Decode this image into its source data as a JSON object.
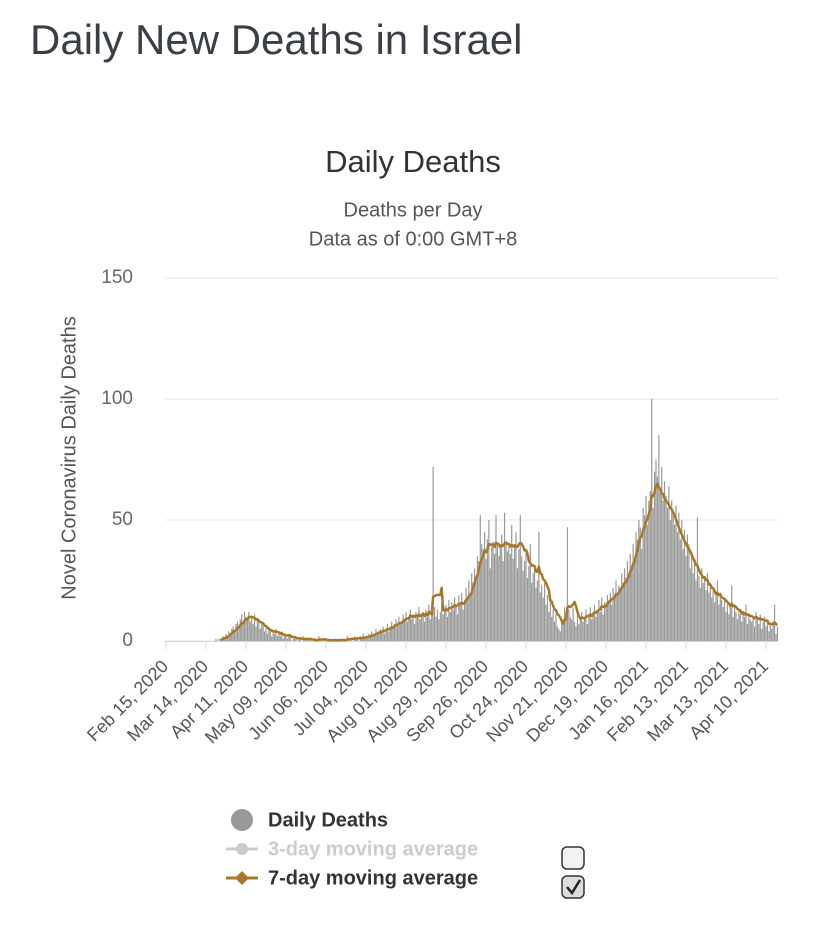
{
  "page_title": "Daily New Deaths in Israel",
  "chart_data": {
    "type": "bar",
    "title": "Daily Deaths",
    "subtitle": [
      "Deaths per Day",
      "Data as of 0:00 GMT+8"
    ],
    "ylabel": "Novel Coronavirus Daily Deaths",
    "ylim": [
      0,
      150
    ],
    "yticks": [
      0,
      50,
      100,
      150
    ],
    "grid": true,
    "categories": [
      "Feb 15, 2020",
      null,
      null,
      null,
      null,
      null,
      null,
      null,
      null,
      null,
      null,
      null,
      null,
      null,
      null,
      null,
      null,
      null,
      null,
      null,
      null,
      null,
      null,
      null,
      null,
      null,
      null,
      null,
      "Mar 14, 2020",
      null,
      null,
      null,
      null,
      null,
      null,
      null,
      null,
      null,
      null,
      null,
      null,
      null,
      null,
      null,
      null,
      null,
      null,
      null,
      null,
      null,
      null,
      null,
      null,
      null,
      null,
      null,
      "Apr 11, 2020",
      null,
      null,
      null,
      null,
      null,
      null,
      null,
      null,
      null,
      null,
      null,
      null,
      null,
      null,
      null,
      null,
      null,
      null,
      null,
      null,
      null,
      null,
      null,
      null,
      null,
      null,
      null,
      "May 09, 2020",
      null,
      null,
      null,
      null,
      null,
      null,
      null,
      null,
      null,
      null,
      null,
      null,
      null,
      null,
      null,
      null,
      null,
      null,
      null,
      null,
      null,
      null,
      null,
      null,
      null,
      null,
      null,
      "Jun 06, 2020",
      null,
      null,
      null,
      null,
      null,
      null,
      null,
      null,
      null,
      null,
      null,
      null,
      null,
      null,
      null,
      null,
      null,
      null,
      null,
      null,
      null,
      null,
      null,
      null,
      null,
      null,
      null,
      "Jul 04, 2020",
      null,
      null,
      null,
      null,
      null,
      null,
      null,
      null,
      null,
      null,
      null,
      null,
      null,
      null,
      null,
      null,
      null,
      null,
      null,
      null,
      null,
      null,
      null,
      null,
      null,
      null,
      null,
      "Aug 01, 2020",
      null,
      null,
      null,
      null,
      null,
      null,
      null,
      null,
      null,
      null,
      null,
      null,
      null,
      null,
      null,
      null,
      null,
      null,
      null,
      null,
      null,
      null,
      null,
      null,
      null,
      null,
      null,
      "Aug 29, 2020",
      null,
      null,
      null,
      null,
      null,
      null,
      null,
      null,
      null,
      null,
      null,
      null,
      null,
      null,
      null,
      null,
      null,
      null,
      null,
      null,
      null,
      null,
      null,
      null,
      null,
      null,
      null,
      "Sep 26, 2020",
      null,
      null,
      null,
      null,
      null,
      null,
      null,
      null,
      null,
      null,
      null,
      null,
      null,
      null,
      null,
      null,
      null,
      null,
      null,
      null,
      null,
      null,
      null,
      null,
      null,
      null,
      null,
      "Oct 24, 2020",
      null,
      null,
      null,
      null,
      null,
      null,
      null,
      null,
      null,
      null,
      null,
      null,
      null,
      null,
      null,
      null,
      null,
      null,
      null,
      null,
      null,
      null,
      null,
      null,
      null,
      null,
      null,
      "Nov 21, 2020",
      null,
      null,
      null,
      null,
      null,
      null,
      null,
      null,
      null,
      null,
      null,
      null,
      null,
      null,
      null,
      null,
      null,
      null,
      null,
      null,
      null,
      null,
      null,
      null,
      null,
      null,
      null,
      "Dec 19, 2020",
      null,
      null,
      null,
      null,
      null,
      null,
      null,
      null,
      null,
      null,
      null,
      null,
      null,
      null,
      null,
      null,
      null,
      null,
      null,
      null,
      null,
      null,
      null,
      null,
      null,
      null,
      null,
      "Jan 16, 2021",
      null,
      null,
      null,
      null,
      null,
      null,
      null,
      null,
      null,
      null,
      null,
      null,
      null,
      null,
      null,
      null,
      null,
      null,
      null,
      null,
      null,
      null,
      null,
      null,
      null,
      null,
      null,
      "Feb 13, 2021",
      null,
      null,
      null,
      null,
      null,
      null,
      null,
      null,
      null,
      null,
      null,
      null,
      null,
      null,
      null,
      null,
      null,
      null,
      null,
      null,
      null,
      null,
      null,
      null,
      null,
      null,
      null,
      "Mar 13, 2021",
      null,
      null,
      null,
      null,
      null,
      null,
      null,
      null,
      null,
      null,
      null,
      null,
      null,
      null,
      null,
      null,
      null,
      null,
      null,
      null,
      null,
      null,
      null,
      null,
      null,
      null,
      null,
      "Apr 10, 2021",
      null,
      null,
      null,
      null,
      null,
      null,
      null,
      null
    ],
    "series": [
      {
        "name": "Daily Deaths",
        "color": "#999999",
        "values": [
          0,
          0,
          0,
          0,
          0,
          0,
          0,
          0,
          0,
          0,
          0,
          0,
          0,
          0,
          0,
          0,
          0,
          0,
          0,
          0,
          0,
          0,
          0,
          0,
          0,
          0,
          0,
          0,
          0,
          0,
          0,
          0,
          0,
          0,
          0,
          1,
          0,
          1,
          0,
          1,
          2,
          1,
          3,
          2,
          4,
          3,
          5,
          6,
          4,
          7,
          8,
          6,
          9,
          11,
          7,
          12,
          10,
          9,
          12,
          8,
          10,
          7,
          11,
          6,
          9,
          8,
          5,
          7,
          6,
          4,
          5,
          3,
          6,
          4,
          2,
          4,
          3,
          5,
          2,
          3,
          2,
          4,
          1,
          3,
          2,
          1,
          3,
          2,
          0,
          1,
          2,
          1,
          0,
          1,
          1,
          0,
          2,
          1,
          0,
          1,
          0,
          1,
          0,
          0,
          1,
          0,
          0,
          2,
          1,
          0,
          0,
          1,
          0,
          0,
          1,
          0,
          0,
          0,
          1,
          0,
          0,
          1,
          0,
          1,
          0,
          0,
          1,
          2,
          1,
          0,
          1,
          0,
          2,
          1,
          1,
          0,
          2,
          1,
          3,
          1,
          2,
          1,
          3,
          2,
          4,
          3,
          2,
          5,
          3,
          4,
          5,
          4,
          6,
          3,
          5,
          7,
          4,
          6,
          8,
          5,
          7,
          9,
          6,
          10,
          8,
          7,
          11,
          9,
          12,
          8,
          10,
          13,
          9,
          11,
          7,
          12,
          10,
          14,
          9,
          11,
          12,
          8,
          13,
          10,
          15,
          9,
          11,
          72,
          14,
          10,
          13,
          9,
          12,
          16,
          11,
          14,
          15,
          10,
          17,
          12,
          16,
          13,
          18,
          14,
          11,
          19,
          15,
          20,
          13,
          17,
          22,
          18,
          25,
          20,
          28,
          24,
          30,
          27,
          35,
          33,
          52,
          40,
          38,
          45,
          34,
          42,
          50,
          30,
          39,
          41,
          36,
          52,
          40,
          35,
          38,
          44,
          33,
          53,
          41,
          37,
          39,
          36,
          48,
          34,
          40,
          45,
          30,
          38,
          52,
          35,
          29,
          33,
          37,
          26,
          31,
          40,
          24,
          28,
          30,
          22,
          25,
          45,
          20,
          23,
          18,
          24,
          15,
          19,
          12,
          16,
          10,
          13,
          8,
          11,
          6,
          5,
          4,
          9,
          7,
          14,
          12,
          47,
          13,
          10,
          9,
          14,
          8,
          6,
          11,
          7,
          9,
          12,
          8,
          10,
          13,
          7,
          11,
          14,
          9,
          12,
          15,
          10,
          13,
          17,
          12,
          18,
          11,
          16,
          14,
          19,
          17,
          20,
          15,
          22,
          18,
          25,
          19,
          23,
          21,
          28,
          24,
          30,
          26,
          33,
          28,
          36,
          31,
          40,
          35,
          45,
          42,
          50,
          47,
          38,
          55,
          52,
          60,
          48,
          58,
          62,
          100,
          55,
          70,
          75,
          68,
          85,
          62,
          72,
          58,
          66,
          60,
          55,
          64,
          50,
          58,
          52,
          48,
          56,
          45,
          53,
          42,
          50,
          38,
          46,
          35,
          44,
          40,
          30,
          37,
          28,
          34,
          25,
          51,
          27,
          22,
          30,
          24,
          26,
          21,
          28,
          20,
          24,
          18,
          22,
          16,
          19,
          25,
          15,
          20,
          17,
          14,
          18,
          12,
          16,
          11,
          15,
          23,
          10,
          14,
          12,
          9,
          13,
          11,
          8,
          12,
          10,
          15,
          7,
          11,
          9,
          8,
          10,
          6,
          12,
          9,
          7,
          11,
          5,
          8,
          10,
          6,
          9,
          4,
          7,
          5,
          8,
          15,
          3,
          6
        ]
      },
      {
        "name": "7-day moving average",
        "color": "#a8782a",
        "checked": true,
        "values": [
          null,
          null,
          null,
          null,
          null,
          null,
          null,
          null,
          null,
          null,
          null,
          null,
          null,
          null,
          null,
          null,
          null,
          null,
          null,
          null,
          null,
          null,
          null,
          null,
          null,
          null,
          null,
          null,
          null,
          null,
          null,
          null,
          null,
          null,
          null,
          null,
          null,
          null,
          0.4,
          0.6,
          0.9,
          1.1,
          1.4,
          1.7,
          2.1,
          2.7,
          3.1,
          3.9,
          4.1,
          4.6,
          5.3,
          5.6,
          6.6,
          7.3,
          7.3,
          8.4,
          9.0,
          9.0,
          10.0,
          9.9,
          10.0,
          9.7,
          9.6,
          8.9,
          9.0,
          8.3,
          7.9,
          7.6,
          7.3,
          6.4,
          6.3,
          5.4,
          5.1,
          4.6,
          4.3,
          4.1,
          3.9,
          4.0,
          3.7,
          3.6,
          3.0,
          3.3,
          2.7,
          2.6,
          2.4,
          2.3,
          2.3,
          2.3,
          1.7,
          1.7,
          1.6,
          1.4,
          1.1,
          1.1,
          1.1,
          0.9,
          1.0,
          0.9,
          0.7,
          0.9,
          0.7,
          0.9,
          0.7,
          0.6,
          0.6,
          0.3,
          0.3,
          0.6,
          0.6,
          0.6,
          0.6,
          0.7,
          0.6,
          0.4,
          0.4,
          0.3,
          0.3,
          0.3,
          0.3,
          0.3,
          0.3,
          0.3,
          0.3,
          0.4,
          0.4,
          0.3,
          0.4,
          0.7,
          0.7,
          0.7,
          0.9,
          0.9,
          1.0,
          1.0,
          1.1,
          1.1,
          1.3,
          1.1,
          1.4,
          1.3,
          1.6,
          1.6,
          1.7,
          1.9,
          2.3,
          2.3,
          2.4,
          2.9,
          3.1,
          3.4,
          3.7,
          3.7,
          4.3,
          4.0,
          4.6,
          4.7,
          4.9,
          5.1,
          5.6,
          5.4,
          6.3,
          6.6,
          6.6,
          7.3,
          7.4,
          7.4,
          8.3,
          8.6,
          9.0,
          9.3,
          9.3,
          10.6,
          10.0,
          10.4,
          10.0,
          10.6,
          10.3,
          10.9,
          10.3,
          10.6,
          11.3,
          10.4,
          11.3,
          10.7,
          12.1,
          11.3,
          11.1,
          18.3,
          18.6,
          18.9,
          19.1,
          19.0,
          19.0,
          22.0,
          12.7,
          12.7,
          13.0,
          12.7,
          13.6,
          13.6,
          13.9,
          14.0,
          14.9,
          14.4,
          14.7,
          15.4,
          15.3,
          15.9,
          15.4,
          15.6,
          16.9,
          17.4,
          18.6,
          19.0,
          20.0,
          22.3,
          23.9,
          26.0,
          27.1,
          29.6,
          32.3,
          33.9,
          35.1,
          37.4,
          36.6,
          38.1,
          40.1,
          39.9,
          39.7,
          40.0,
          38.9,
          40.6,
          40.3,
          39.9,
          38.7,
          39.7,
          39.3,
          40.3,
          40.7,
          40.1,
          40.1,
          39.1,
          39.7,
          39.1,
          39.6,
          38.9,
          38.9,
          40.0,
          40.6,
          40.1,
          39.1,
          37.4,
          37.6,
          36.3,
          32.9,
          32.3,
          31.1,
          31.3,
          30.9,
          28.7,
          28.6,
          30.7,
          27.9,
          27.6,
          25.6,
          25.0,
          24.0,
          22.6,
          21.0,
          16.7,
          16.3,
          14.6,
          13.1,
          12.7,
          11.1,
          10.6,
          9.6,
          8.3,
          7.1,
          8.9,
          9.0,
          13.8,
          14.4,
          14.0,
          14.6,
          15.1,
          16.1,
          14.4,
          12.1,
          10.3,
          9.3,
          9.6,
          9.6,
          9.3,
          9.9,
          10.3,
          10.4,
          11.0,
          10.3,
          11.1,
          11.9,
          11.7,
          12.3,
          12.9,
          13.0,
          14.4,
          14.1,
          14.4,
          14.3,
          15.6,
          16.1,
          16.4,
          17.4,
          17.3,
          18.1,
          19.4,
          19.3,
          20.0,
          21.1,
          22.0,
          22.6,
          24.1,
          24.3,
          25.9,
          26.6,
          28.9,
          29.7,
          31.9,
          32.7,
          35.4,
          37.4,
          40.6,
          42.6,
          43.3,
          45.9,
          47.0,
          49.1,
          50.4,
          52.6,
          54.3,
          60.1,
          59.8,
          61.6,
          64.2,
          65.0,
          63.5,
          62.9,
          61.1,
          60.8,
          58.7,
          58.0,
          57.2,
          56.4,
          55.1,
          54.4,
          53.2,
          51.8,
          50.3,
          48.9,
          47.0,
          45.4,
          44.1,
          42.8,
          41.3,
          40.2,
          39.0,
          38.1,
          36.8,
          35.7,
          34.2,
          33.0,
          31.5,
          31.1,
          29.6,
          28.0,
          27.3,
          26.1,
          26.4,
          25.2,
          25.3,
          23.3,
          23.3,
          22.0,
          21.9,
          20.6,
          19.4,
          19.9,
          19.0,
          19.3,
          18.0,
          17.7,
          17.4,
          16.7,
          16.1,
          15.4,
          14.6,
          15.4,
          14.4,
          14.6,
          14.1,
          13.3,
          12.9,
          12.7,
          11.3,
          11.9,
          11.0,
          11.4,
          10.7,
          10.9,
          10.3,
          10.3,
          9.9,
          9.4,
          10.0,
          9.6,
          9.1,
          9.4,
          8.9,
          8.9,
          8.6,
          8.3,
          8.4,
          7.1,
          7.1,
          6.9,
          7.1,
          7.7,
          7.0,
          6.6
        ]
      }
    ],
    "hidden_series": [
      {
        "name": "3-day moving average",
        "color": "#cccccc",
        "checked": false
      }
    ]
  }
}
